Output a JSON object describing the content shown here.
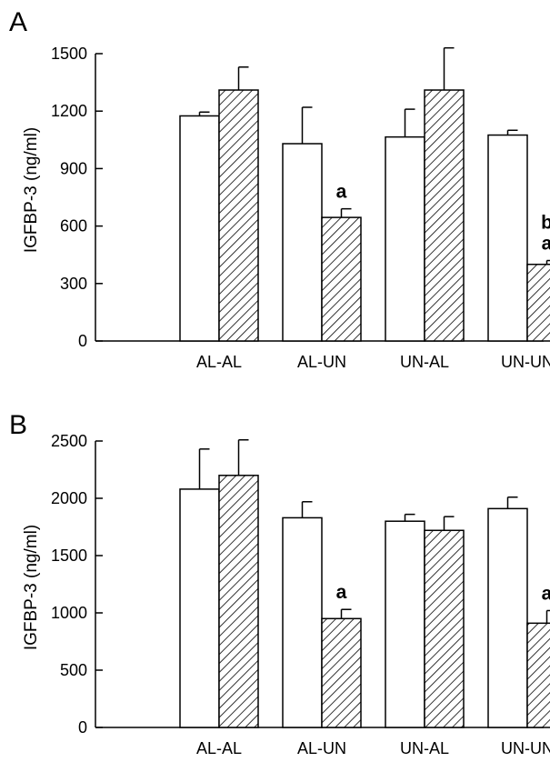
{
  "chart_data": [
    {
      "type": "bar",
      "panel": "A",
      "ylabel": "IGFBP-3 (ng/ml)",
      "ylim": [
        0,
        1500
      ],
      "yticks": [
        0,
        300,
        600,
        900,
        1200,
        1500
      ],
      "categories": [
        "AL-AL",
        "AL-UN",
        "UN-AL",
        "UN-UN"
      ],
      "grid": false,
      "series": [
        {
          "style": "open",
          "color": "#ffffff",
          "values": [
            1175,
            1030,
            1065,
            1075
          ],
          "errors": [
            20,
            190,
            145,
            25
          ]
        },
        {
          "style": "hatched",
          "color": "#ffffff",
          "values": [
            1310,
            645,
            1310,
            400
          ],
          "errors": [
            120,
            45,
            220,
            20
          ]
        }
      ],
      "annotations": [
        {
          "category": 1,
          "series": 1,
          "lines": [
            "a"
          ]
        },
        {
          "category": 3,
          "series": 1,
          "lines": [
            "b",
            "a"
          ]
        }
      ]
    },
    {
      "type": "bar",
      "panel": "B",
      "ylabel": "IGFBP-3 (ng/ml)",
      "ylim": [
        0,
        2500
      ],
      "yticks": [
        0,
        500,
        1000,
        1500,
        2000,
        2500
      ],
      "categories": [
        "AL-AL",
        "AL-UN",
        "UN-AL",
        "UN-UN"
      ],
      "grid": false,
      "series": [
        {
          "style": "open",
          "color": "#ffffff",
          "values": [
            2080,
            1830,
            1800,
            1910
          ],
          "errors": [
            350,
            140,
            60,
            100
          ]
        },
        {
          "style": "hatched",
          "color": "#ffffff",
          "values": [
            2200,
            950,
            1720,
            910
          ],
          "errors": [
            310,
            80,
            120,
            110
          ]
        }
      ],
      "annotations": [
        {
          "category": 1,
          "series": 1,
          "lines": [
            "a"
          ]
        },
        {
          "category": 3,
          "series": 1,
          "lines": [
            "a"
          ]
        }
      ]
    }
  ]
}
